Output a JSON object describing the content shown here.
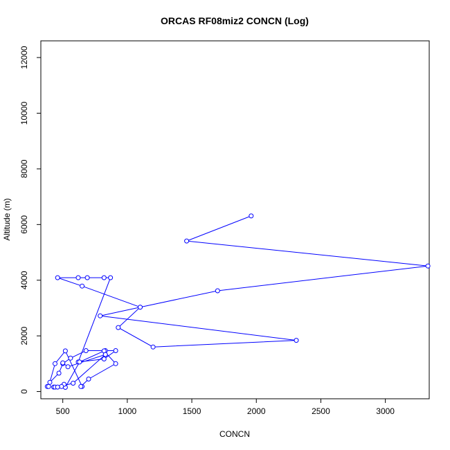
{
  "chart_data": {
    "type": "line",
    "title": "ORCAS RF08miz2 CONCN (Log)",
    "xlabel": "CONCN",
    "ylabel": "Altitude (m)",
    "xlim": [
      330,
      3340
    ],
    "ylim": [
      -260,
      12600
    ],
    "xticks": [
      500,
      1000,
      1500,
      2000,
      2500,
      3000
    ],
    "yticks": [
      0,
      2000,
      4000,
      6000,
      8000,
      10000,
      12000
    ],
    "xtick_labels": [
      "500",
      "1000",
      "1500",
      "2000",
      "2500",
      "3000"
    ],
    "ytick_labels": [
      "0",
      "2000",
      "4000",
      "6000",
      "8000",
      "10000",
      "12000"
    ],
    "series_color": "#0000ff",
    "grid": false,
    "legend": "none",
    "series": [
      {
        "x": [
          1960,
          1460,
          3330,
          1700,
          1100,
          790,
          2310,
          1200,
          930,
          1100,
          650,
          460,
          620,
          690,
          820,
          870,
          620,
          820,
          910,
          830,
          680,
          560,
          500,
          470,
          400,
          380,
          390,
          440,
          520,
          650,
          640,
          700,
          910,
          820,
          630,
          520,
          510,
          490,
          430,
          440,
          460,
          580,
          830,
          540,
          500
        ],
        "y": [
          6310,
          5410,
          4510,
          3620,
          3030,
          2720,
          1840,
          1600,
          2300,
          3030,
          3790,
          4090,
          4090,
          4090,
          4090,
          4090,
          1060,
          1170,
          1470,
          1470,
          1470,
          1200,
          1000,
          660,
          330,
          180,
          180,
          1000,
          1460,
          180,
          180,
          450,
          1000,
          1460,
          1060,
          150,
          260,
          180,
          160,
          160,
          160,
          300,
          1330,
          890,
          1030
        ]
      }
    ]
  }
}
